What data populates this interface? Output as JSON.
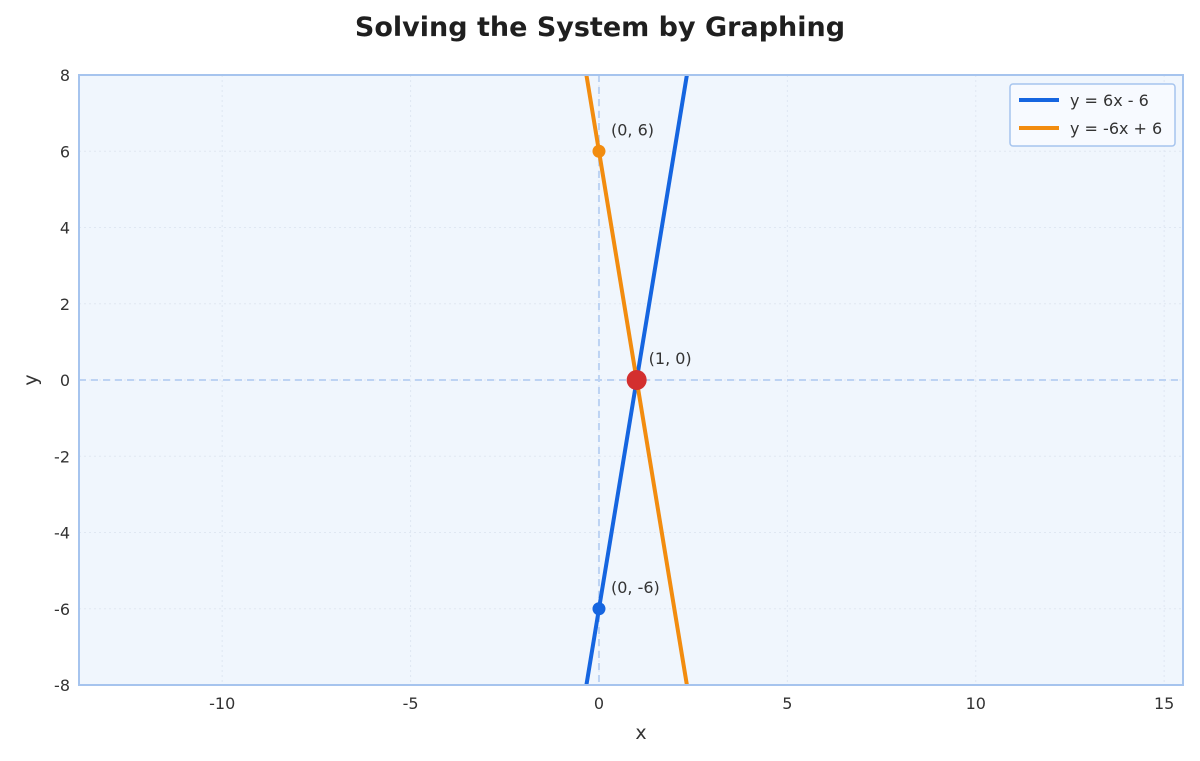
{
  "chart_data": {
    "type": "line",
    "title": "Solving the System by Graphing",
    "xlabel": "x",
    "ylabel": "y",
    "xlim": [
      -13.8,
      15.5
    ],
    "ylim": [
      -8,
      8
    ],
    "xticks": [
      -10,
      -5,
      0,
      5,
      10,
      15
    ],
    "yticks": [
      -8,
      -6,
      -4,
      -2,
      0,
      2,
      4,
      6,
      8
    ],
    "grid": true,
    "legend_position": "top-right",
    "series": [
      {
        "name": "y = 6x - 6",
        "slope": 6,
        "intercept": -6,
        "color": "#1565e0",
        "x": [
          -0.3333,
          2.3333
        ],
        "y": [
          -8,
          8
        ]
      },
      {
        "name": "y = -6x + 6",
        "slope": -6,
        "intercept": 6,
        "color": "#f28c0f",
        "x": [
          -0.3333,
          2.3333
        ],
        "y": [
          8,
          -8
        ]
      }
    ],
    "points": [
      {
        "label": "(0, 6)",
        "x": 0,
        "y": 6,
        "color": "#f28c0f",
        "size": "small"
      },
      {
        "label": "(0, -6)",
        "x": 0,
        "y": -6,
        "color": "#1565e0",
        "size": "small"
      },
      {
        "label": "(1, 0)",
        "x": 1,
        "y": 0,
        "color": "#d32f2f",
        "size": "large"
      }
    ],
    "colors": {
      "plot_background": "#f0f6fd",
      "frame": "#a6c4ee",
      "grid": "#dfe7f2",
      "zero_lines": "#bdd3f3"
    }
  }
}
